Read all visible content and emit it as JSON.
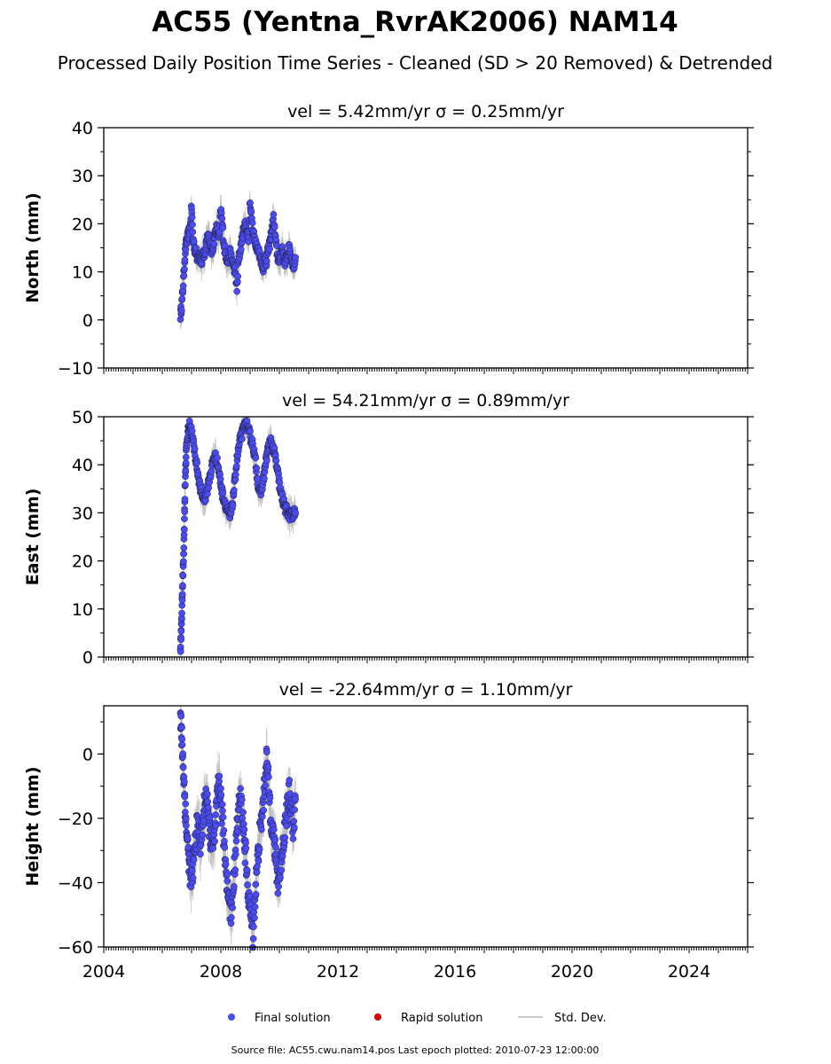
{
  "title": "AC55 (Yentna_RvrAK2006) NAM14",
  "subtitle": "Processed Daily Position Time Series - Cleaned (SD > 20 Removed) & Detrended",
  "legend": {
    "final": "Final solution",
    "rapid": "Rapid solution",
    "std": "Std. Dev."
  },
  "footer": "Source file: AC55.cwu.nam14.pos  Last epoch plotted: 2010-07-23 12:00:00",
  "colors": {
    "final": "#4b4bf2",
    "rapid": "#dd0000",
    "std": "#bbbbbb",
    "axis": "#000000"
  },
  "chart_data": [
    {
      "type": "scatter",
      "title": "vel = 5.42mm/yr   σ = 0.25mm/yr",
      "ylabel": "North (mm)",
      "xlim": [
        2004,
        2026
      ],
      "ylim": [
        -10,
        40
      ],
      "yticks": [
        -10,
        0,
        10,
        20,
        30,
        40
      ],
      "series": [
        {
          "name": "Final solution",
          "x": [
            2006.62,
            2006.66,
            2006.7,
            2006.74,
            2006.78,
            2006.82,
            2006.86,
            2006.9,
            2006.95,
            2007.0,
            2007.05,
            2007.1,
            2007.15,
            2007.2,
            2007.25,
            2007.3,
            2007.35,
            2007.4,
            2007.45,
            2007.5,
            2007.55,
            2007.6,
            2007.65,
            2007.7,
            2007.75,
            2007.8,
            2007.85,
            2007.9,
            2007.95,
            2008.0,
            2008.05,
            2008.1,
            2008.15,
            2008.2,
            2008.25,
            2008.3,
            2008.35,
            2008.4,
            2008.45,
            2008.5,
            2008.55,
            2008.6,
            2008.65,
            2008.7,
            2008.75,
            2008.8,
            2008.85,
            2008.9,
            2008.95,
            2009.0,
            2009.05,
            2009.1,
            2009.15,
            2009.2,
            2009.25,
            2009.3,
            2009.35,
            2009.4,
            2009.45,
            2009.5,
            2009.55,
            2009.6,
            2009.65,
            2009.7,
            2009.75,
            2009.8,
            2009.85,
            2009.9,
            2009.95,
            2010.0,
            2010.05,
            2010.1,
            2010.15,
            2010.2,
            2010.25,
            2010.3,
            2010.35,
            2010.4,
            2010.45,
            2010.5,
            2010.55
          ],
          "y": [
            1,
            3,
            6,
            10,
            14,
            16,
            17,
            18,
            19,
            23.5,
            17,
            15,
            14,
            13,
            14,
            13,
            12,
            14,
            13,
            16,
            18,
            17,
            15,
            14,
            16,
            18,
            19,
            18,
            17,
            23,
            20,
            16,
            14,
            13,
            12,
            14,
            13,
            12,
            11,
            10,
            6,
            12,
            14,
            16,
            18,
            19,
            20,
            18,
            17,
            25,
            21,
            18,
            17,
            16,
            15,
            14,
            13,
            12,
            11,
            13,
            12,
            14,
            15,
            17,
            19,
            21,
            18,
            15,
            13,
            12,
            14,
            15,
            13,
            12,
            13,
            14,
            15,
            13,
            12,
            11,
            13
          ]
        }
      ]
    },
    {
      "type": "scatter",
      "title": "vel = 54.21mm/yr   σ = 0.89mm/yr",
      "ylabel": "East (mm)",
      "xlim": [
        2004,
        2026
      ],
      "ylim": [
        0,
        50
      ],
      "yticks": [
        0,
        10,
        20,
        30,
        40,
        50
      ],
      "series": [
        {
          "name": "Final solution",
          "x": [
            2006.62,
            2006.64,
            2006.66,
            2006.68,
            2006.7,
            2006.72,
            2006.74,
            2006.76,
            2006.78,
            2006.8,
            2006.82,
            2006.85,
            2006.88,
            2006.92,
            2006.96,
            2007.0,
            2007.05,
            2007.1,
            2007.15,
            2007.2,
            2007.25,
            2007.3,
            2007.35,
            2007.4,
            2007.45,
            2007.5,
            2007.55,
            2007.6,
            2007.65,
            2007.7,
            2007.75,
            2007.8,
            2007.85,
            2007.9,
            2007.95,
            2008.0,
            2008.05,
            2008.1,
            2008.15,
            2008.2,
            2008.25,
            2008.3,
            2008.35,
            2008.4,
            2008.45,
            2008.5,
            2008.55,
            2008.6,
            2008.65,
            2008.7,
            2008.75,
            2008.8,
            2008.85,
            2008.9,
            2008.95,
            2009.0,
            2009.05,
            2009.1,
            2009.15,
            2009.2,
            2009.25,
            2009.3,
            2009.35,
            2009.4,
            2009.45,
            2009.5,
            2009.55,
            2009.6,
            2009.65,
            2009.7,
            2009.75,
            2009.8,
            2009.85,
            2009.9,
            2009.95,
            2010.0,
            2010.05,
            2010.1,
            2010.15,
            2010.2,
            2010.25,
            2010.3,
            2010.35,
            2010.4,
            2010.45,
            2010.5,
            2010.55
          ],
          "y": [
            1,
            4,
            8,
            12,
            16,
            20,
            24,
            30,
            36,
            40,
            43,
            45,
            47,
            48,
            48.5,
            47,
            45,
            43,
            41,
            39,
            37,
            35,
            34,
            33,
            33,
            34,
            35,
            37,
            38,
            40,
            41,
            42,
            41,
            40,
            38,
            36,
            34,
            33,
            32,
            31,
            30,
            29,
            30,
            32,
            35,
            38,
            41,
            43,
            45,
            46,
            47,
            48,
            48.5,
            48,
            47,
            46,
            45,
            44,
            42,
            40,
            37,
            35,
            34,
            35,
            37,
            39,
            41,
            43,
            44,
            45,
            44,
            43,
            42,
            40,
            38,
            36,
            34,
            33,
            32,
            31,
            30.5,
            30,
            29.5,
            30,
            29,
            30,
            30
          ]
        }
      ]
    },
    {
      "type": "scatter",
      "title": "vel = -22.64mm/yr   σ = 1.10mm/yr",
      "ylabel": "Height (mm)",
      "xlim": [
        2004,
        2026
      ],
      "ylim": [
        -60,
        15
      ],
      "yticks": [
        -60,
        -40,
        -20,
        0
      ],
      "xticks": [
        2004,
        2008,
        2012,
        2016,
        2020,
        2024
      ],
      "series": [
        {
          "name": "Final solution",
          "x": [
            2006.62,
            2006.65,
            2006.68,
            2006.71,
            2006.74,
            2006.77,
            2006.8,
            2006.84,
            2006.88,
            2006.92,
            2006.96,
            2007.0,
            2007.05,
            2007.1,
            2007.15,
            2007.2,
            2007.25,
            2007.3,
            2007.35,
            2007.4,
            2007.45,
            2007.5,
            2007.55,
            2007.6,
            2007.65,
            2007.7,
            2007.75,
            2007.8,
            2007.85,
            2007.9,
            2007.95,
            2008.0,
            2008.05,
            2008.1,
            2008.15,
            2008.2,
            2008.25,
            2008.3,
            2008.35,
            2008.4,
            2008.45,
            2008.5,
            2008.55,
            2008.6,
            2008.65,
            2008.7,
            2008.75,
            2008.8,
            2008.85,
            2008.9,
            2008.95,
            2009.0,
            2009.05,
            2009.1,
            2009.15,
            2009.2,
            2009.25,
            2009.3,
            2009.35,
            2009.4,
            2009.45,
            2009.5,
            2009.55,
            2009.6,
            2009.65,
            2009.7,
            2009.75,
            2009.8,
            2009.85,
            2009.9,
            2009.95,
            2010.0,
            2010.05,
            2010.1,
            2010.15,
            2010.2,
            2010.25,
            2010.3,
            2010.35,
            2010.4,
            2010.45,
            2010.5,
            2010.55
          ],
          "y": [
            11,
            7,
            3,
            -3,
            -8,
            -14,
            -20,
            -25,
            -30,
            -34,
            -38,
            -40,
            -36,
            -30,
            -26,
            -22,
            -24,
            -27,
            -25,
            -20,
            -15,
            -12,
            -18,
            -22,
            -26,
            -28,
            -30,
            -24,
            -18,
            -12,
            -8,
            -14,
            -20,
            -26,
            -32,
            -38,
            -42,
            -47,
            -50,
            -44,
            -38,
            -30,
            -24,
            -18,
            -14,
            -16,
            -20,
            -26,
            -32,
            -40,
            -44,
            -48,
            -52,
            -57,
            -48,
            -40,
            -34,
            -28,
            -24,
            -20,
            -15,
            -10,
            0,
            -6,
            -12,
            -18,
            -22,
            -26,
            -30,
            -35,
            -40,
            -38,
            -34,
            -30,
            -26,
            -22,
            -18,
            -15,
            -12,
            -16,
            -20,
            -25,
            -14
          ]
        }
      ]
    }
  ]
}
